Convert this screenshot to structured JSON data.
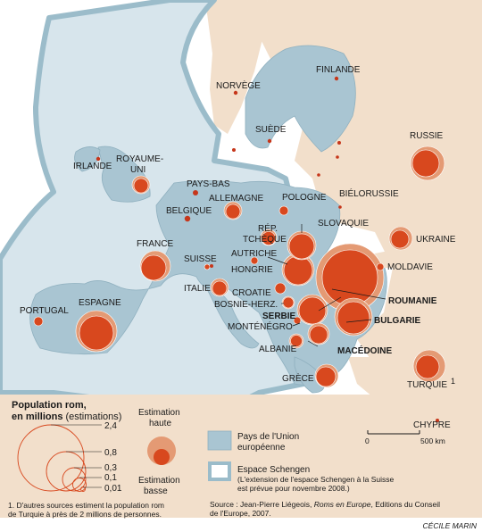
{
  "colors": {
    "sea": "#ffffff",
    "non_eu_land": "#f2dfcb",
    "eu_land": "#a9c5d2",
    "schengen_zone": "#d7e5ec",
    "schengen_border": "#9bbcca",
    "high_estimate": "#e49a74",
    "low_estimate": "#d8481e",
    "dot": "#c6361a"
  },
  "countries": [
    {
      "name": "NORVÈGE"
    },
    {
      "name": "FINLANDE"
    },
    {
      "name": "SUÈDE"
    },
    {
      "name": "RUSSIE"
    },
    {
      "name": "IRLANDE"
    },
    {
      "name": "ROYAUME-\nUNI"
    },
    {
      "name": "PAYS-BAS"
    },
    {
      "name": "ALLEMAGNE"
    },
    {
      "name": "POLOGNE"
    },
    {
      "name": "BIÉLORUSSIE"
    },
    {
      "name": "BELGIQUE"
    },
    {
      "name": "RÉP.\nTCHÈQUE"
    },
    {
      "name": "SLOVAQUIE"
    },
    {
      "name": "UKRAINE"
    },
    {
      "name": "FRANCE"
    },
    {
      "name": "AUTRICHE"
    },
    {
      "name": "SUISSE"
    },
    {
      "name": "HONGRIE"
    },
    {
      "name": "MOLDAVIE"
    },
    {
      "name": "ITALIE"
    },
    {
      "name": "CROATIE"
    },
    {
      "name": "ROUMANIE"
    },
    {
      "name": "BOSNIE-HERZ."
    },
    {
      "name": "SERBIE"
    },
    {
      "name": "BULGARIE"
    },
    {
      "name": "PORTUGAL"
    },
    {
      "name": "ESPAGNE"
    },
    {
      "name": "MONTÉNÉGRO"
    },
    {
      "name": "ALBANIE"
    },
    {
      "name": "MACÉDOINE"
    },
    {
      "name": "GRÈCE"
    },
    {
      "name": "TURQUIE"
    },
    {
      "name": "CHYPRE"
    }
  ],
  "legend": {
    "title_line1": "Population rom,",
    "title_line2": "en millions",
    "title_suffix": "(estimations)",
    "scale_values": [
      "2,4",
      "0,8",
      "0,3",
      "0,1",
      "0,01"
    ],
    "estimation_high_l1": "Estimation",
    "estimation_high_l2": "haute",
    "estimation_low_l1": "Estimation",
    "estimation_low_l2": "basse",
    "eu_l1": "Pays de l'Union",
    "eu_l2": "européenne",
    "schengen_title": "Espace Schengen",
    "schengen_l1": "(L'extension de l'espace Schengen à la Suisse",
    "schengen_l2": "est prévue pour novembre 2008.)",
    "scale_zero": "0",
    "scale_km": "500 km",
    "turquie_note_marker": "1"
  },
  "footnote": {
    "l1": "1. D'autres sources estiment la population rom",
    "l2": "de Turquie à près de 2 millions de personnes."
  },
  "source": {
    "prefix": "Source : Jean-Pierre Liégeois, ",
    "book": "Roms en Europe",
    "suffix": ", Editions du Conseil",
    "l2": "de l'Europe, 2007."
  },
  "credit": "CÉCILE MARIN"
}
